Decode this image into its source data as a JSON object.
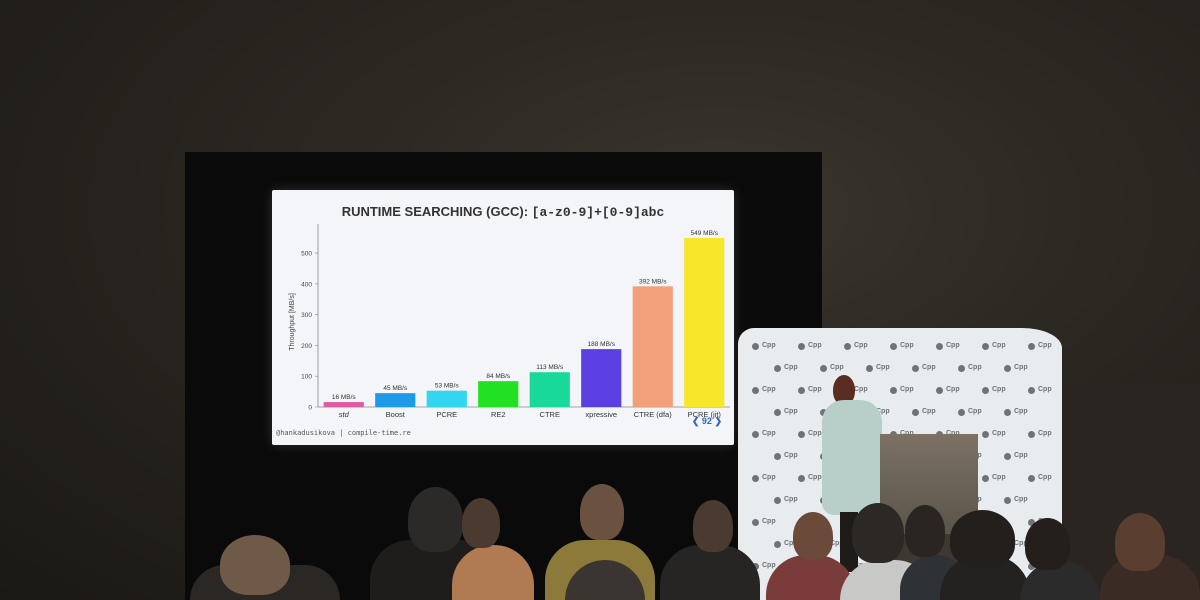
{
  "slide": {
    "title_prefix": "RUNTIME SEARCHING (GCC):",
    "title_regex": "[a-z0-9]+[0-9]abc",
    "footer": "@hankadusikova | compile-time.re",
    "page_number": "92"
  },
  "chart_data": {
    "type": "bar",
    "title": "RUNTIME SEARCHING (GCC): [a-z0-9]+[0-9]abc",
    "categories": [
      "std",
      "Boost",
      "PCRE",
      "RE2",
      "CTRE",
      "xpressive",
      "CTRE (dfa)",
      "PCRE (jit)"
    ],
    "values": [
      16,
      45,
      53,
      84,
      113,
      188,
      392,
      549
    ],
    "data_labels": [
      "16 MB/s",
      "45 MB/s",
      "53 MB/s",
      "84 MB/s",
      "113 MB/s",
      "188 MB/s",
      "392 MB/s",
      "549 MB/s"
    ],
    "colors": [
      "#e05a9f",
      "#1e9be8",
      "#33d6f0",
      "#22e022",
      "#18d99a",
      "#5b3fe0",
      "#f2a07a",
      "#f7e62a"
    ],
    "ylabel": "Throughput [MB/s]",
    "xlabel": "",
    "ylim": [
      0,
      549
    ],
    "yticks": [
      0,
      100,
      200,
      300,
      400,
      500
    ],
    "grid": false,
    "legend": "none"
  },
  "backdrop": {
    "logo_text": "Cpp",
    "accent_color": "#6d7378"
  }
}
